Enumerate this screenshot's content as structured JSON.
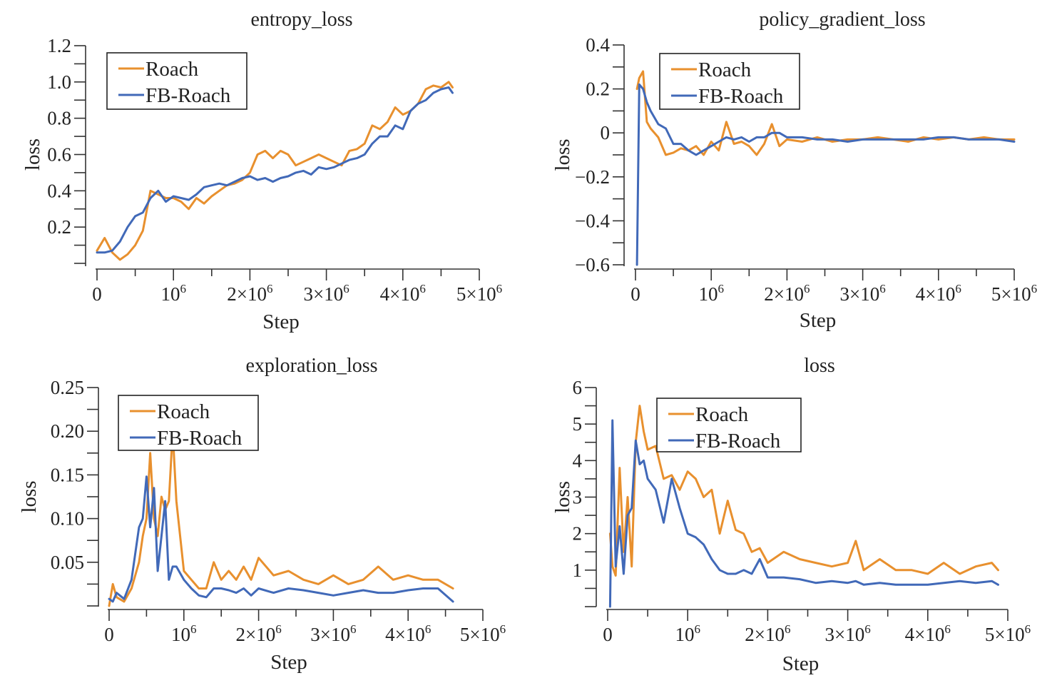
{
  "figure": {
    "series_names": [
      "Roach",
      "FB-Roach"
    ],
    "colors": {
      "Roach": "#E8902E",
      "FB-Roach": "#4169B8"
    }
  },
  "chart_data": [
    {
      "id": "entropy",
      "type": "line",
      "title": "entropy_loss",
      "xlabel": "Step",
      "ylabel": "loss",
      "xlim": [
        0,
        5000000
      ],
      "ylim": [
        0,
        1.2
      ],
      "xticks": [
        0,
        1000000,
        2000000,
        3000000,
        4000000,
        5000000
      ],
      "xtick_labels": [
        {
          "base": "0",
          "exp": ""
        },
        {
          "base": "10",
          "exp": "6"
        },
        {
          "base": "2×10",
          "exp": "6"
        },
        {
          "base": "3×10",
          "exp": "6"
        },
        {
          "base": "4×10",
          "exp": "6"
        },
        {
          "base": "5×10",
          "exp": "6"
        }
      ],
      "yticks": [
        0.2,
        0.4,
        0.6,
        0.8,
        1.0,
        1.2
      ],
      "ytick_labels": [
        "0.2",
        "0.4",
        "0.6",
        "0.8",
        "1.0",
        "1.2"
      ],
      "legend": "top-left",
      "grid": false,
      "x": [
        0,
        100000,
        200000,
        300000,
        400000,
        500000,
        600000,
        700000,
        800000,
        900000,
        1000000,
        1100000,
        1200000,
        1300000,
        1400000,
        1500000,
        1600000,
        1700000,
        1800000,
        1900000,
        2000000,
        2100000,
        2200000,
        2300000,
        2400000,
        2500000,
        2600000,
        2700000,
        2800000,
        2900000,
        3000000,
        3100000,
        3200000,
        3300000,
        3400000,
        3500000,
        3600000,
        3700000,
        3800000,
        3900000,
        4000000,
        4100000,
        4200000,
        4300000,
        4400000,
        4500000,
        4600000,
        4650000
      ],
      "series": [
        {
          "name": "Roach",
          "values": [
            0.07,
            0.14,
            0.06,
            0.02,
            0.05,
            0.1,
            0.18,
            0.4,
            0.38,
            0.36,
            0.36,
            0.34,
            0.3,
            0.36,
            0.33,
            0.37,
            0.4,
            0.43,
            0.44,
            0.46,
            0.5,
            0.6,
            0.62,
            0.58,
            0.62,
            0.6,
            0.54,
            0.56,
            0.58,
            0.6,
            0.58,
            0.56,
            0.54,
            0.62,
            0.63,
            0.66,
            0.76,
            0.74,
            0.78,
            0.86,
            0.82,
            0.84,
            0.88,
            0.96,
            0.98,
            0.97,
            1.0,
            0.97
          ]
        },
        {
          "name": "FB-Roach",
          "values": [
            0.06,
            0.06,
            0.07,
            0.12,
            0.2,
            0.26,
            0.28,
            0.36,
            0.4,
            0.34,
            0.37,
            0.36,
            0.35,
            0.38,
            0.42,
            0.43,
            0.44,
            0.43,
            0.45,
            0.47,
            0.48,
            0.46,
            0.47,
            0.45,
            0.47,
            0.48,
            0.5,
            0.51,
            0.49,
            0.53,
            0.52,
            0.53,
            0.55,
            0.57,
            0.58,
            0.6,
            0.66,
            0.7,
            0.7,
            0.76,
            0.74,
            0.84,
            0.88,
            0.9,
            0.94,
            0.96,
            0.97,
            0.94
          ]
        }
      ]
    },
    {
      "id": "policy",
      "type": "line",
      "title": "policy_gradient_loss",
      "xlabel": "Step",
      "ylabel": "loss",
      "xlim": [
        0,
        5000000
      ],
      "ylim": [
        -0.6,
        0.4
      ],
      "xticks": [
        0,
        1000000,
        2000000,
        3000000,
        4000000,
        5000000
      ],
      "xtick_labels": [
        {
          "base": "0",
          "exp": ""
        },
        {
          "base": "10",
          "exp": "6"
        },
        {
          "base": "2×10",
          "exp": "6"
        },
        {
          "base": "3×10",
          "exp": "6"
        },
        {
          "base": "4×10",
          "exp": "6"
        },
        {
          "base": "5×10",
          "exp": "6"
        }
      ],
      "yticks": [
        -0.6,
        -0.4,
        -0.2,
        0,
        0.2,
        0.4
      ],
      "ytick_labels": [
        "−0.6",
        "−0.4",
        "−0.2",
        "0",
        "0.2",
        "0.4"
      ],
      "legend": "top-left",
      "grid": false,
      "x": [
        20000,
        50000,
        100000,
        150000,
        200000,
        300000,
        400000,
        500000,
        600000,
        700000,
        800000,
        900000,
        1000000,
        1100000,
        1200000,
        1300000,
        1400000,
        1500000,
        1600000,
        1700000,
        1800000,
        1900000,
        2000000,
        2200000,
        2400000,
        2600000,
        2800000,
        3000000,
        3200000,
        3400000,
        3600000,
        3800000,
        4000000,
        4200000,
        4400000,
        4600000,
        4800000,
        5000000
      ],
      "series": [
        {
          "name": "Roach",
          "values": [
            0.2,
            0.25,
            0.28,
            0.05,
            0.02,
            -0.02,
            -0.1,
            -0.09,
            -0.07,
            -0.08,
            -0.06,
            -0.1,
            -0.04,
            -0.08,
            0.05,
            -0.05,
            -0.04,
            -0.06,
            -0.1,
            -0.05,
            0.04,
            -0.06,
            -0.03,
            -0.04,
            -0.02,
            -0.04,
            -0.03,
            -0.03,
            -0.02,
            -0.03,
            -0.04,
            -0.02,
            -0.03,
            -0.02,
            -0.03,
            -0.02,
            -0.03,
            -0.03
          ]
        },
        {
          "name": "FB-Roach",
          "values": [
            -0.6,
            0.22,
            0.2,
            0.14,
            0.1,
            0.04,
            0.02,
            -0.05,
            -0.05,
            -0.08,
            -0.1,
            -0.08,
            -0.06,
            -0.04,
            -0.02,
            -0.03,
            -0.02,
            -0.04,
            -0.02,
            -0.02,
            0.0,
            0.0,
            -0.02,
            -0.02,
            -0.03,
            -0.03,
            -0.04,
            -0.03,
            -0.03,
            -0.03,
            -0.03,
            -0.03,
            -0.02,
            -0.02,
            -0.03,
            -0.03,
            -0.03,
            -0.04
          ]
        }
      ]
    },
    {
      "id": "exploration",
      "type": "line",
      "title": "exploration_loss",
      "xlabel": "Step",
      "ylabel": "loss",
      "xlim": [
        0,
        5000000
      ],
      "ylim": [
        0,
        0.25
      ],
      "xticks": [
        0,
        1000000,
        2000000,
        3000000,
        4000000,
        5000000
      ],
      "xtick_labels": [
        {
          "base": "0",
          "exp": ""
        },
        {
          "base": "10",
          "exp": "6"
        },
        {
          "base": "2×10",
          "exp": "6"
        },
        {
          "base": "3×10",
          "exp": "6"
        },
        {
          "base": "4×10",
          "exp": "6"
        },
        {
          "base": "5×10",
          "exp": "6"
        }
      ],
      "yticks": [
        0.05,
        0.1,
        0.15,
        0.2,
        0.25
      ],
      "ytick_labels": [
        "0.05",
        "0.10",
        "0.15",
        "0.20",
        "0.25"
      ],
      "legend": "top-left",
      "grid": false,
      "x": [
        0,
        50000,
        100000,
        200000,
        300000,
        400000,
        450000,
        500000,
        550000,
        600000,
        650000,
        700000,
        750000,
        800000,
        850000,
        900000,
        1000000,
        1100000,
        1200000,
        1300000,
        1400000,
        1500000,
        1600000,
        1700000,
        1800000,
        1900000,
        2000000,
        2200000,
        2400000,
        2600000,
        2800000,
        3000000,
        3200000,
        3400000,
        3600000,
        3800000,
        4000000,
        4200000,
        4400000,
        4600000
      ],
      "series": [
        {
          "name": "Roach",
          "values": [
            0.0,
            0.025,
            0.01,
            0.005,
            0.02,
            0.05,
            0.08,
            0.1,
            0.175,
            0.1,
            0.08,
            0.125,
            0.11,
            0.12,
            0.2,
            0.12,
            0.04,
            0.03,
            0.02,
            0.02,
            0.05,
            0.03,
            0.04,
            0.03,
            0.045,
            0.03,
            0.055,
            0.035,
            0.04,
            0.03,
            0.025,
            0.035,
            0.025,
            0.03,
            0.045,
            0.03,
            0.035,
            0.03,
            0.03,
            0.02
          ]
        },
        {
          "name": "FB-Roach",
          "values": [
            0.008,
            0.005,
            0.015,
            0.008,
            0.03,
            0.09,
            0.1,
            0.148,
            0.09,
            0.135,
            0.04,
            0.08,
            0.12,
            0.03,
            0.045,
            0.045,
            0.03,
            0.02,
            0.012,
            0.01,
            0.02,
            0.02,
            0.018,
            0.015,
            0.02,
            0.012,
            0.02,
            0.015,
            0.02,
            0.018,
            0.015,
            0.012,
            0.015,
            0.018,
            0.015,
            0.015,
            0.018,
            0.02,
            0.02,
            0.005
          ]
        }
      ]
    },
    {
      "id": "total",
      "type": "line",
      "title": "loss",
      "xlabel": "Step",
      "ylabel": "loss",
      "xlim": [
        0,
        5000000
      ],
      "ylim": [
        0,
        6
      ],
      "xticks": [
        0,
        1000000,
        2000000,
        3000000,
        4000000,
        5000000
      ],
      "xtick_labels": [
        {
          "base": "0",
          "exp": ""
        },
        {
          "base": "10",
          "exp": "6"
        },
        {
          "base": "2×10",
          "exp": "6"
        },
        {
          "base": "3×10",
          "exp": "6"
        },
        {
          "base": "4×10",
          "exp": "6"
        },
        {
          "base": "5×10",
          "exp": "6"
        }
      ],
      "yticks": [
        1,
        2,
        3,
        4,
        5,
        6
      ],
      "ytick_labels": [
        "1",
        "2",
        "3",
        "4",
        "5",
        "6"
      ],
      "legend": "top-left",
      "grid": false,
      "x": [
        30000,
        60000,
        100000,
        150000,
        200000,
        250000,
        300000,
        350000,
        400000,
        450000,
        500000,
        600000,
        700000,
        800000,
        900000,
        1000000,
        1100000,
        1200000,
        1300000,
        1400000,
        1500000,
        1600000,
        1700000,
        1800000,
        1900000,
        2000000,
        2200000,
        2400000,
        2600000,
        2800000,
        3000000,
        3100000,
        3200000,
        3400000,
        3600000,
        3800000,
        4000000,
        4200000,
        4400000,
        4600000,
        4800000,
        4880000
      ],
      "series": [
        {
          "name": "Roach",
          "values": [
            2.0,
            1.1,
            0.85,
            3.8,
            1.5,
            3.0,
            1.1,
            4.5,
            5.5,
            4.8,
            4.3,
            4.4,
            3.5,
            3.6,
            3.2,
            3.7,
            3.5,
            3.0,
            3.2,
            2.0,
            2.9,
            2.1,
            2.0,
            1.5,
            1.6,
            1.2,
            1.5,
            1.3,
            1.2,
            1.1,
            1.2,
            1.8,
            1.0,
            1.3,
            1.0,
            1.0,
            0.9,
            1.2,
            0.9,
            1.1,
            1.2,
            1.0
          ]
        },
        {
          "name": "FB-Roach",
          "values": [
            0.0,
            5.1,
            1.1,
            2.2,
            0.9,
            2.5,
            2.7,
            4.55,
            3.9,
            4.0,
            3.5,
            3.2,
            2.3,
            3.5,
            2.7,
            2.0,
            1.9,
            1.7,
            1.3,
            1.0,
            0.9,
            0.9,
            1.0,
            0.9,
            1.3,
            0.8,
            0.8,
            0.75,
            0.65,
            0.7,
            0.65,
            0.7,
            0.6,
            0.65,
            0.6,
            0.6,
            0.6,
            0.65,
            0.7,
            0.65,
            0.7,
            0.6
          ]
        }
      ]
    }
  ]
}
